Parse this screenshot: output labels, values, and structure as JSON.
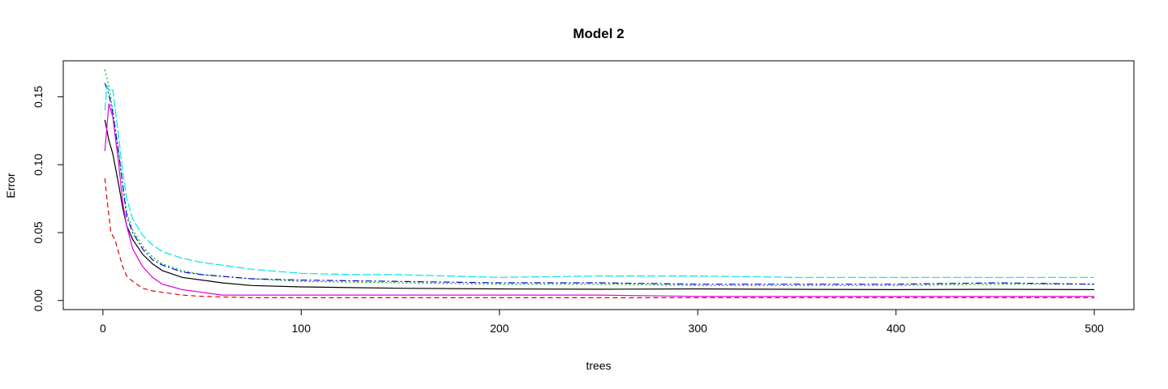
{
  "chart_data": {
    "type": "line",
    "title": "Model 2",
    "xlabel": "trees",
    "ylabel": "Error",
    "xlim": [
      -20,
      520
    ],
    "ylim": [
      -0.0067,
      0.1765
    ],
    "xticks": [
      0,
      100,
      200,
      300,
      400,
      500
    ],
    "xtick_labels": [
      "0",
      "100",
      "200",
      "300",
      "400",
      "500"
    ],
    "yticks": [
      0.0,
      0.05,
      0.1,
      0.15
    ],
    "ytick_labels": [
      "0.00",
      "0.05",
      "0.10",
      "0.15"
    ],
    "grid": false,
    "legend": "none",
    "series": [
      {
        "color": "#000000",
        "dash": "none",
        "points": [
          [
            1,
            0.133
          ],
          [
            3,
            0.118
          ],
          [
            5,
            0.108
          ],
          [
            8,
            0.085
          ],
          [
            10,
            0.068
          ],
          [
            12,
            0.055
          ],
          [
            15,
            0.045
          ],
          [
            20,
            0.034
          ],
          [
            25,
            0.027
          ],
          [
            30,
            0.022
          ],
          [
            40,
            0.017
          ],
          [
            50,
            0.015
          ],
          [
            60,
            0.013
          ],
          [
            75,
            0.011
          ],
          [
            100,
            0.01
          ],
          [
            125,
            0.0095
          ],
          [
            150,
            0.009
          ],
          [
            200,
            0.0085
          ],
          [
            250,
            0.0083
          ],
          [
            300,
            0.0085
          ],
          [
            350,
            0.0082
          ],
          [
            400,
            0.008
          ],
          [
            450,
            0.0082
          ],
          [
            500,
            0.008
          ]
        ]
      },
      {
        "color": "#DF0000",
        "dash": "6,4",
        "points": [
          [
            1,
            0.09
          ],
          [
            2,
            0.075
          ],
          [
            4,
            0.05
          ],
          [
            6,
            0.045
          ],
          [
            8,
            0.035
          ],
          [
            10,
            0.025
          ],
          [
            12,
            0.018
          ],
          [
            15,
            0.014
          ],
          [
            20,
            0.009
          ],
          [
            25,
            0.007
          ],
          [
            30,
            0.006
          ],
          [
            40,
            0.004
          ],
          [
            50,
            0.003
          ],
          [
            75,
            0.002
          ],
          [
            100,
            0.002
          ],
          [
            200,
            0.002
          ],
          [
            300,
            0.002
          ],
          [
            400,
            0.002
          ],
          [
            500,
            0.002
          ]
        ]
      },
      {
        "color": "#00B000",
        "dash": "2,3",
        "points": [
          [
            1,
            0.17
          ],
          [
            3,
            0.158
          ],
          [
            5,
            0.14
          ],
          [
            8,
            0.11
          ],
          [
            10,
            0.085
          ],
          [
            12,
            0.065
          ],
          [
            15,
            0.052
          ],
          [
            20,
            0.04
          ],
          [
            25,
            0.032
          ],
          [
            30,
            0.027
          ],
          [
            40,
            0.022
          ],
          [
            50,
            0.019
          ],
          [
            75,
            0.016
          ],
          [
            100,
            0.014
          ],
          [
            150,
            0.013
          ],
          [
            200,
            0.012
          ],
          [
            250,
            0.012
          ],
          [
            300,
            0.011
          ],
          [
            350,
            0.011
          ],
          [
            400,
            0.011
          ],
          [
            450,
            0.012
          ],
          [
            500,
            0.012
          ]
        ]
      },
      {
        "color": "#0000E0",
        "dash": "8,3,2,3",
        "points": [
          [
            1,
            0.16
          ],
          [
            3,
            0.152
          ],
          [
            5,
            0.138
          ],
          [
            8,
            0.108
          ],
          [
            10,
            0.085
          ],
          [
            12,
            0.062
          ],
          [
            15,
            0.05
          ],
          [
            20,
            0.038
          ],
          [
            25,
            0.03
          ],
          [
            30,
            0.026
          ],
          [
            40,
            0.021
          ],
          [
            50,
            0.019
          ],
          [
            75,
            0.016
          ],
          [
            100,
            0.015
          ],
          [
            150,
            0.014
          ],
          [
            200,
            0.013
          ],
          [
            250,
            0.013
          ],
          [
            300,
            0.012
          ],
          [
            350,
            0.012
          ],
          [
            400,
            0.012
          ],
          [
            450,
            0.013
          ],
          [
            500,
            0.012
          ]
        ]
      },
      {
        "color": "#00E5E5",
        "dash": "10,3",
        "points": [
          [
            1,
            0.14
          ],
          [
            2,
            0.158
          ],
          [
            3,
            0.155
          ],
          [
            5,
            0.155
          ],
          [
            8,
            0.12
          ],
          [
            10,
            0.095
          ],
          [
            12,
            0.075
          ],
          [
            15,
            0.06
          ],
          [
            20,
            0.048
          ],
          [
            25,
            0.041
          ],
          [
            30,
            0.036
          ],
          [
            40,
            0.031
          ],
          [
            50,
            0.028
          ],
          [
            60,
            0.026
          ],
          [
            75,
            0.023
          ],
          [
            100,
            0.02
          ],
          [
            125,
            0.019
          ],
          [
            150,
            0.019
          ],
          [
            175,
            0.018
          ],
          [
            200,
            0.017
          ],
          [
            250,
            0.018
          ],
          [
            300,
            0.018
          ],
          [
            350,
            0.017
          ],
          [
            400,
            0.017
          ],
          [
            450,
            0.017
          ],
          [
            500,
            0.017
          ]
        ]
      },
      {
        "color": "#E000E0",
        "dash": "none",
        "points": [
          [
            1,
            0.11
          ],
          [
            3,
            0.145
          ],
          [
            5,
            0.135
          ],
          [
            8,
            0.1
          ],
          [
            10,
            0.072
          ],
          [
            12,
            0.055
          ],
          [
            15,
            0.038
          ],
          [
            20,
            0.025
          ],
          [
            25,
            0.017
          ],
          [
            30,
            0.012
          ],
          [
            35,
            0.01
          ],
          [
            40,
            0.008
          ],
          [
            50,
            0.006
          ],
          [
            60,
            0.004
          ],
          [
            75,
            0.004
          ],
          [
            100,
            0.004
          ],
          [
            150,
            0.004
          ],
          [
            200,
            0.004
          ],
          [
            250,
            0.004
          ],
          [
            300,
            0.003
          ],
          [
            350,
            0.003
          ],
          [
            400,
            0.003
          ],
          [
            450,
            0.003
          ],
          [
            500,
            0.003
          ]
        ]
      }
    ]
  }
}
